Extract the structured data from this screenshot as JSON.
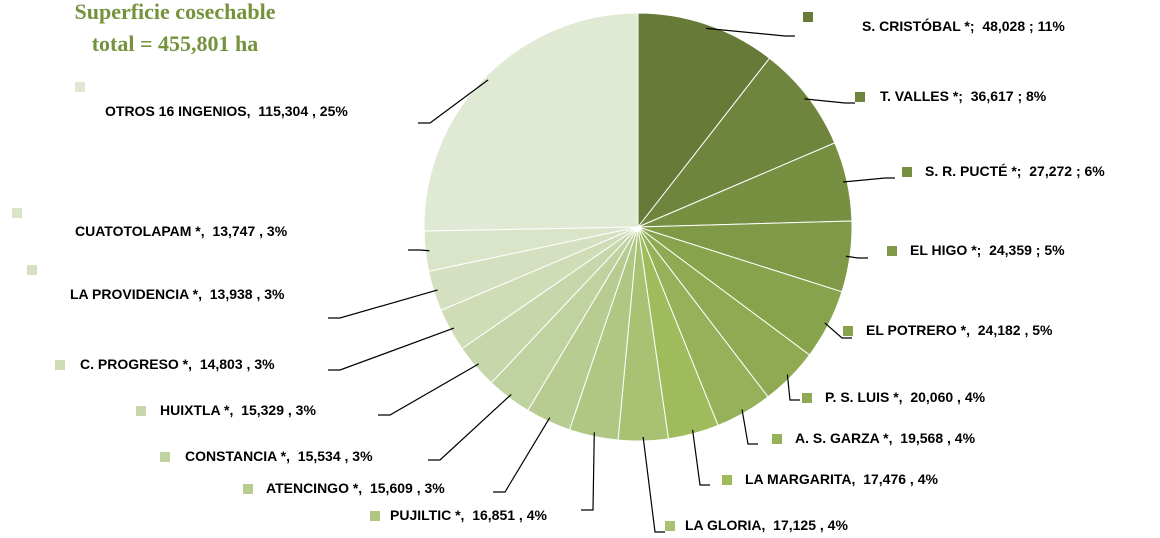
{
  "chart_data": {
    "type": "pie",
    "title": "Superficie cosechable",
    "subtitle": "total = 455,801 ha",
    "categories": [
      "S. CRISTÓBAL *;",
      "T. VALLES *;",
      "S. R. PUCTÉ *;",
      "EL HIGO *;",
      "EL POTRERO  *,",
      "P. S. LUIS *,",
      "A. S. GARZA *,",
      "LA MARGARITA,",
      "LA GLORIA,",
      "PUJILTIC *,",
      "ATENCINGO *,",
      "CONSTANCIA *,",
      "HUIXTLA *,",
      "C. PROGRESO *,",
      "LA PROVIDENCIA *,",
      "CUATOTOLAPAM *,",
      "OTROS 16 INGENIOS,"
    ],
    "values": [
      48028,
      36617,
      27272,
      24359,
      24182,
      20060,
      19568,
      17476,
      17125,
      16851,
      15609,
      15534,
      15329,
      14803,
      13938,
      13747,
      115304
    ],
    "value_labels": [
      "48,028 ;",
      "36,617 ;",
      "27,272 ;",
      "24,359 ;",
      "24,182 ,",
      "20,060 ,",
      "19,568 ,",
      "17,476 ,",
      "17,125 ,",
      "16,851 ,",
      "15,609 ,",
      "15,534 ,",
      "15,329 ,",
      "14,803 ,",
      "13,938 ,",
      "13,747 ,",
      "115,304 ,"
    ],
    "percents": [
      11,
      8,
      6,
      5,
      5,
      4,
      4,
      4,
      4,
      4,
      3,
      3,
      3,
      3,
      3,
      3,
      25
    ],
    "percent_labels": [
      "11%",
      "8%",
      "6%",
      "5%",
      "5%",
      "4%",
      "4%",
      "4%",
      "4%",
      "4%",
      "3%",
      "3%",
      "3%",
      "3%",
      "3%",
      "3%",
      "25%"
    ],
    "colors": [
      "#677a38",
      "#6f843c",
      "#778f41",
      "#7f9946",
      "#87a34b",
      "#8faa52",
      "#97b15a",
      "#9fbc5c",
      "#a8c173",
      "#b0c784",
      "#b8cc92",
      "#c0d29f",
      "#c8d7ab",
      "#cfdcb6",
      "#d5e0c0",
      "#dae4c9",
      "#e0e9d4"
    ]
  }
}
